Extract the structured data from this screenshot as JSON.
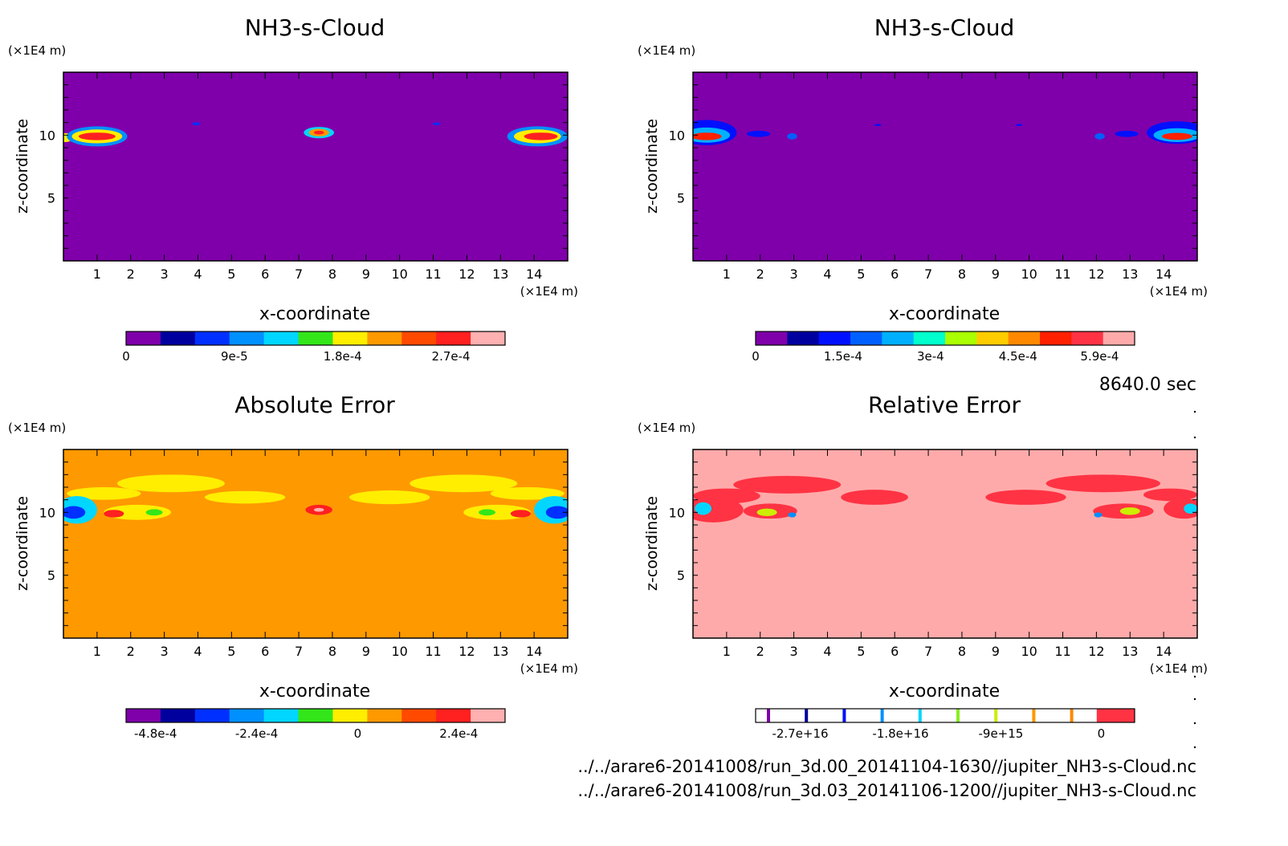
{
  "chart_data": [
    {
      "type": "heatmap",
      "title": "NH3-s-Cloud",
      "xlabel": "x-coordinate",
      "ylabel": "z-coordinate",
      "x_unit": "(×1E4 m)",
      "y_unit": "(×1E4 m)",
      "xlim": [
        0,
        15
      ],
      "ylim": [
        0,
        15
      ],
      "x_ticks": [
        1,
        2,
        3,
        4,
        5,
        6,
        7,
        8,
        9,
        10,
        11,
        12,
        13,
        14
      ],
      "y_ticks": [
        5,
        10
      ],
      "background_color": "#7f00aa",
      "colorbar": {
        "colors": [
          "#7f00aa",
          "#00009f",
          "#0030ff",
          "#0090ff",
          "#00d6ff",
          "#33e61a",
          "#ffee00",
          "#ff9900",
          "#ff4a00",
          "#ff2020",
          "#ffb0b0"
        ],
        "range": [
          0,
          0.000315
        ],
        "tick_labels": [
          "0",
          "9e-5",
          "1.8e-4",
          "2.7e-4"
        ],
        "tick_values": [
          0,
          9e-05,
          0.00018,
          0.00027
        ]
      },
      "features": [
        {
          "x": 0.05,
          "z": 9.8,
          "rx": 0.25,
          "rz": 0.35,
          "color_index": 6
        },
        {
          "x": 1.0,
          "z": 9.9,
          "rx": 0.9,
          "rz": 0.8,
          "color_index": 3
        },
        {
          "x": 1.0,
          "z": 9.9,
          "rx": 0.75,
          "rz": 0.55,
          "color_index": 6
        },
        {
          "x": 1.0,
          "z": 9.9,
          "rx": 0.55,
          "rz": 0.3,
          "color_index": 9
        },
        {
          "x": 3.95,
          "z": 10.9,
          "rx": 0.12,
          "rz": 0.12,
          "color_index": 2
        },
        {
          "x": 7.6,
          "z": 10.2,
          "rx": 0.45,
          "rz": 0.45,
          "color_index": 4
        },
        {
          "x": 7.6,
          "z": 10.2,
          "rx": 0.3,
          "rz": 0.3,
          "color_index": 7
        },
        {
          "x": 7.6,
          "z": 10.2,
          "rx": 0.15,
          "rz": 0.15,
          "color_index": 9
        },
        {
          "x": 11.1,
          "z": 10.9,
          "rx": 0.12,
          "rz": 0.1,
          "color_index": 2
        },
        {
          "x": 14.1,
          "z": 9.9,
          "rx": 0.9,
          "rz": 0.8,
          "color_index": 3
        },
        {
          "x": 14.1,
          "z": 9.9,
          "rx": 0.7,
          "rz": 0.55,
          "color_index": 6
        },
        {
          "x": 14.2,
          "z": 9.9,
          "rx": 0.5,
          "rz": 0.3,
          "color_index": 9
        }
      ]
    },
    {
      "type": "heatmap",
      "title": "NH3-s-Cloud",
      "xlabel": "x-coordinate",
      "ylabel": "z-coordinate",
      "x_unit": "(×1E4 m)",
      "y_unit": "(×1E4 m)",
      "xlim": [
        0,
        15
      ],
      "ylim": [
        0,
        15
      ],
      "x_ticks": [
        1,
        2,
        3,
        4,
        5,
        6,
        7,
        8,
        9,
        10,
        11,
        12,
        13,
        14
      ],
      "y_ticks": [
        5,
        10
      ],
      "background_color": "#7f00aa",
      "colorbar": {
        "colors": [
          "#7f00aa",
          "#00009f",
          "#0010ff",
          "#0060ff",
          "#00b0ff",
          "#00ffcc",
          "#aaff00",
          "#ffcc00",
          "#ff8800",
          "#ff2000",
          "#ff3344",
          "#ffaaaa"
        ],
        "range": [
          0,
          0.00065
        ],
        "tick_labels": [
          "0",
          "1.5e-4",
          "3e-4",
          "4.5e-4",
          "5.9e-4"
        ],
        "tick_values": [
          0,
          0.00015,
          0.0003,
          0.00045,
          0.00059
        ]
      },
      "features": [
        {
          "x": 0.4,
          "z": 10.2,
          "rx": 0.9,
          "rz": 1.0,
          "color_index": 2
        },
        {
          "x": 0.4,
          "z": 10.0,
          "rx": 0.7,
          "rz": 0.6,
          "color_index": 4
        },
        {
          "x": 0.4,
          "z": 9.9,
          "rx": 0.45,
          "rz": 0.3,
          "color_index": 9
        },
        {
          "x": 1.95,
          "z": 10.1,
          "rx": 0.35,
          "rz": 0.25,
          "color_index": 2
        },
        {
          "x": 2.95,
          "z": 9.9,
          "rx": 0.15,
          "rz": 0.25,
          "color_index": 3
        },
        {
          "x": 5.5,
          "z": 10.8,
          "rx": 0.1,
          "rz": 0.08,
          "color_index": 2
        },
        {
          "x": 9.7,
          "z": 10.8,
          "rx": 0.1,
          "rz": 0.08,
          "color_index": 2
        },
        {
          "x": 12.1,
          "z": 9.9,
          "rx": 0.15,
          "rz": 0.25,
          "color_index": 3
        },
        {
          "x": 12.9,
          "z": 10.1,
          "rx": 0.35,
          "rz": 0.25,
          "color_index": 2
        },
        {
          "x": 14.4,
          "z": 10.2,
          "rx": 0.9,
          "rz": 0.9,
          "color_index": 2
        },
        {
          "x": 14.4,
          "z": 10.0,
          "rx": 0.7,
          "rz": 0.55,
          "color_index": 4
        },
        {
          "x": 14.4,
          "z": 9.9,
          "rx": 0.45,
          "rz": 0.28,
          "color_index": 9
        }
      ]
    },
    {
      "type": "heatmap",
      "title": "Absolute Error",
      "xlabel": "x-coordinate",
      "ylabel": "z-coordinate",
      "x_unit": "(×1E4 m)",
      "y_unit": "(×1E4 m)",
      "xlim": [
        0,
        15
      ],
      "ylim": [
        0,
        15
      ],
      "x_ticks": [
        1,
        2,
        3,
        4,
        5,
        6,
        7,
        8,
        9,
        10,
        11,
        12,
        13,
        14
      ],
      "y_ticks": [
        5,
        10
      ],
      "background_color": "#ff9900",
      "colorbar": {
        "colors": [
          "#7f00aa",
          "#00009f",
          "#0030ff",
          "#0090ff",
          "#00d6ff",
          "#33e61a",
          "#ffee00",
          "#ff9900",
          "#ff4a00",
          "#ff2020",
          "#ffb0b0"
        ],
        "range": [
          -0.00055,
          0.00035
        ],
        "tick_labels": [
          "-4.8e-4",
          "-2.4e-4",
          "0",
          "2.4e-4"
        ],
        "tick_values": [
          -0.00048,
          -0.00024,
          0,
          0.00024
        ]
      },
      "features": [
        {
          "x": 3.2,
          "z": 12.3,
          "rx": 1.6,
          "rz": 0.7,
          "color_index": 6
        },
        {
          "x": 1.2,
          "z": 11.5,
          "rx": 1.1,
          "rz": 0.5,
          "color_index": 6
        },
        {
          "x": 5.4,
          "z": 11.2,
          "rx": 1.2,
          "rz": 0.5,
          "color_index": 6
        },
        {
          "x": 9.7,
          "z": 11.2,
          "rx": 1.2,
          "rz": 0.55,
          "color_index": 6
        },
        {
          "x": 11.9,
          "z": 12.3,
          "rx": 1.6,
          "rz": 0.7,
          "color_index": 6
        },
        {
          "x": 13.8,
          "z": 11.5,
          "rx": 1.1,
          "rz": 0.5,
          "color_index": 6
        },
        {
          "x": 0.4,
          "z": 10.2,
          "rx": 0.6,
          "rz": 1.1,
          "color_index": 4
        },
        {
          "x": 0.3,
          "z": 10.0,
          "rx": 0.35,
          "rz": 0.5,
          "color_index": 2
        },
        {
          "x": 2.2,
          "z": 10.0,
          "rx": 1.0,
          "rz": 0.6,
          "color_index": 6
        },
        {
          "x": 1.5,
          "z": 9.9,
          "rx": 0.3,
          "rz": 0.3,
          "color_index": 9
        },
        {
          "x": 2.7,
          "z": 10.0,
          "rx": 0.25,
          "rz": 0.25,
          "color_index": 5
        },
        {
          "x": 7.6,
          "z": 10.2,
          "rx": 0.4,
          "rz": 0.4,
          "color_index": 9
        },
        {
          "x": 7.6,
          "z": 10.2,
          "rx": 0.15,
          "rz": 0.15,
          "color_index": 10
        },
        {
          "x": 12.9,
          "z": 10.0,
          "rx": 1.0,
          "rz": 0.6,
          "color_index": 6
        },
        {
          "x": 12.6,
          "z": 10.0,
          "rx": 0.25,
          "rz": 0.25,
          "color_index": 5
        },
        {
          "x": 13.6,
          "z": 9.9,
          "rx": 0.3,
          "rz": 0.3,
          "color_index": 9
        },
        {
          "x": 14.6,
          "z": 10.2,
          "rx": 0.6,
          "rz": 1.1,
          "color_index": 4
        },
        {
          "x": 14.7,
          "z": 10.0,
          "rx": 0.35,
          "rz": 0.5,
          "color_index": 2
        }
      ]
    },
    {
      "type": "heatmap",
      "title": "Relative Error",
      "xlabel": "x-coordinate",
      "ylabel": "z-coordinate",
      "x_unit": "(×1E4 m)",
      "y_unit": "(×1E4 m)",
      "xlim": [
        0,
        15
      ],
      "ylim": [
        0,
        15
      ],
      "x_ticks": [
        1,
        2,
        3,
        4,
        5,
        6,
        7,
        8,
        9,
        10,
        11,
        12,
        13,
        14
      ],
      "y_ticks": [
        5,
        10
      ],
      "background_color": "#ffaaaa",
      "colorbar": {
        "colors": [
          "#7f00aa",
          "#00009f",
          "#0010ff",
          "#0090ff",
          "#00d6ff",
          "#88ee22",
          "#ccee00",
          "#ff9900",
          "#ff8800",
          "#ff3344"
        ],
        "range": [
          -3.1e+16,
          3000000000000000.0
        ],
        "tick_labels": [
          "-2.7e+16",
          "-1.8e+16",
          "-9e+15",
          "0"
        ],
        "tick_values": [
          -2.7e+16,
          -1.8e+16,
          -9000000000000000.0,
          0
        ]
      },
      "features": [
        {
          "x": 2.8,
          "z": 12.2,
          "rx": 1.6,
          "rz": 0.7,
          "color_index": 9
        },
        {
          "x": 1.0,
          "z": 11.3,
          "rx": 1.0,
          "rz": 0.6,
          "color_index": 9
        },
        {
          "x": 5.4,
          "z": 11.2,
          "rx": 1.0,
          "rz": 0.6,
          "color_index": 9
        },
        {
          "x": 9.9,
          "z": 11.2,
          "rx": 1.2,
          "rz": 0.6,
          "color_index": 9
        },
        {
          "x": 12.2,
          "z": 12.3,
          "rx": 1.7,
          "rz": 0.7,
          "color_index": 9
        },
        {
          "x": 14.2,
          "z": 11.4,
          "rx": 0.8,
          "rz": 0.5,
          "color_index": 9
        },
        {
          "x": 0.6,
          "z": 10.2,
          "rx": 0.9,
          "rz": 1.0,
          "color_index": 9
        },
        {
          "x": 0.3,
          "z": 10.3,
          "rx": 0.25,
          "rz": 0.5,
          "color_index": 4
        },
        {
          "x": 2.3,
          "z": 10.1,
          "rx": 0.8,
          "rz": 0.6,
          "color_index": 9
        },
        {
          "x": 2.2,
          "z": 10.0,
          "rx": 0.3,
          "rz": 0.3,
          "color_index": 6
        },
        {
          "x": 2.95,
          "z": 9.8,
          "rx": 0.12,
          "rz": 0.2,
          "color_index": 3
        },
        {
          "x": 12.8,
          "z": 10.1,
          "rx": 0.9,
          "rz": 0.6,
          "color_index": 9
        },
        {
          "x": 13.0,
          "z": 10.1,
          "rx": 0.3,
          "rz": 0.3,
          "color_index": 6
        },
        {
          "x": 12.05,
          "z": 9.8,
          "rx": 0.12,
          "rz": 0.2,
          "color_index": 3
        },
        {
          "x": 14.6,
          "z": 10.3,
          "rx": 0.6,
          "rz": 0.8,
          "color_index": 9
        },
        {
          "x": 14.8,
          "z": 10.3,
          "rx": 0.2,
          "rz": 0.4,
          "color_index": 4
        }
      ]
    }
  ],
  "time_label": "8640.0 sec",
  "files": [
    "../../arare6-20141008/run_3d.00_20141104-1630//jupiter_NH3-s-Cloud.nc",
    "../../arare6-20141008/run_3d.03_20141106-1200//jupiter_NH3-s-Cloud.nc"
  ]
}
